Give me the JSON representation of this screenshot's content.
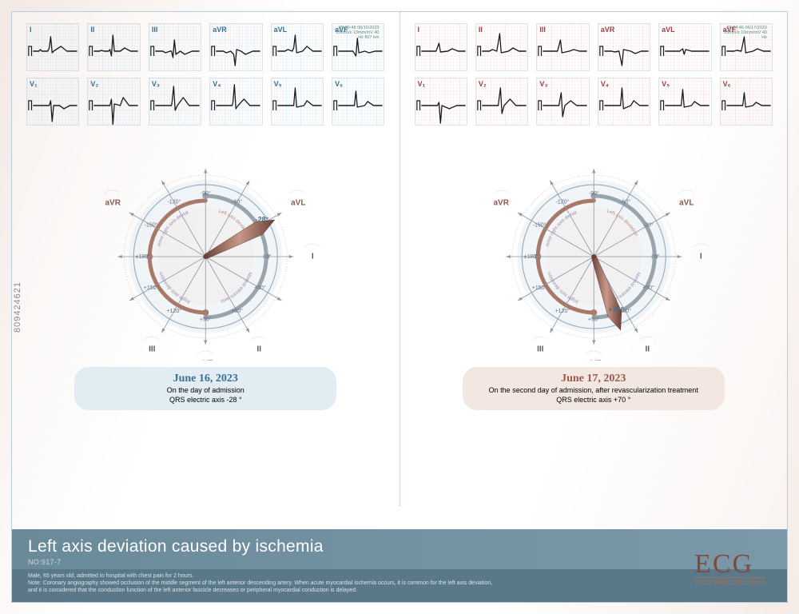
{
  "title": "Left axis deviation caused by ischemia",
  "caseNo": "NO:917-7",
  "noteHeader": "Male, 65 years old, admitted to hospital with chest pain for 2 hours.",
  "noteBody": "Note: Coronary angiography showed occlusion of the middle segment of the left anterior descending artery. When acute myocardial ischemia occurs, it is common for the left axis deviation,\nand it is considered that the conduction function of the left anterior fascicle decreases or peripheral myocardial conduction is delayed.",
  "logo": {
    "main": "ECG",
    "sub": "Visual electrocardiogram"
  },
  "watermark": "809424621",
  "leads": {
    "row1": [
      "I",
      "II",
      "III",
      "aVR",
      "aVL",
      "aVF"
    ],
    "row2": [
      "V₁",
      "V₂",
      "V₃",
      "V₄",
      "V₅",
      "V₆"
    ]
  },
  "ecg_shapes": {
    "left": {
      "I": [
        [
          0,
          0
        ],
        [
          8,
          0
        ],
        [
          10,
          -2
        ],
        [
          12,
          0
        ],
        [
          20,
          0
        ],
        [
          22,
          -4
        ],
        [
          24,
          -18
        ],
        [
          26,
          2
        ],
        [
          28,
          0
        ],
        [
          38,
          -6
        ],
        [
          46,
          0
        ],
        [
          60,
          0
        ]
      ],
      "II": [
        [
          0,
          0
        ],
        [
          8,
          0
        ],
        [
          10,
          -1
        ],
        [
          14,
          0
        ],
        [
          20,
          0
        ],
        [
          22,
          -2
        ],
        [
          24,
          6
        ],
        [
          26,
          -20
        ],
        [
          28,
          0
        ],
        [
          36,
          0
        ],
        [
          42,
          -4
        ],
        [
          50,
          0
        ],
        [
          60,
          0
        ]
      ],
      "III": [
        [
          0,
          0
        ],
        [
          10,
          0
        ],
        [
          14,
          2
        ],
        [
          20,
          0
        ],
        [
          22,
          0
        ],
        [
          24,
          8
        ],
        [
          26,
          -14
        ],
        [
          28,
          4
        ],
        [
          34,
          0
        ],
        [
          40,
          4
        ],
        [
          50,
          0
        ],
        [
          60,
          0
        ]
      ],
      "aVR": [
        [
          0,
          0
        ],
        [
          10,
          0
        ],
        [
          14,
          2
        ],
        [
          20,
          0
        ],
        [
          24,
          4
        ],
        [
          26,
          18
        ],
        [
          28,
          -2
        ],
        [
          34,
          0
        ],
        [
          40,
          4
        ],
        [
          50,
          0
        ],
        [
          60,
          0
        ]
      ],
      "aVL": [
        [
          0,
          0
        ],
        [
          10,
          0
        ],
        [
          14,
          -2
        ],
        [
          20,
          0
        ],
        [
          22,
          -4
        ],
        [
          24,
          -20
        ],
        [
          26,
          2
        ],
        [
          34,
          0
        ],
        [
          40,
          -6
        ],
        [
          48,
          0
        ],
        [
          60,
          0
        ]
      ],
      "aVF": [
        [
          0,
          0
        ],
        [
          10,
          0
        ],
        [
          20,
          0
        ],
        [
          24,
          6
        ],
        [
          26,
          -16
        ],
        [
          28,
          2
        ],
        [
          36,
          0
        ],
        [
          42,
          2
        ],
        [
          50,
          0
        ],
        [
          60,
          0
        ]
      ],
      "V1": [
        [
          0,
          0
        ],
        [
          10,
          0
        ],
        [
          22,
          0
        ],
        [
          24,
          -6
        ],
        [
          26,
          20
        ],
        [
          28,
          0
        ],
        [
          36,
          0
        ],
        [
          42,
          4
        ],
        [
          50,
          0
        ],
        [
          60,
          0
        ]
      ],
      "V2": [
        [
          0,
          0
        ],
        [
          10,
          0
        ],
        [
          22,
          0
        ],
        [
          24,
          -8
        ],
        [
          26,
          24
        ],
        [
          28,
          -2
        ],
        [
          36,
          0
        ],
        [
          40,
          -10
        ],
        [
          48,
          0
        ],
        [
          60,
          0
        ]
      ],
      "V3": [
        [
          0,
          0
        ],
        [
          10,
          0
        ],
        [
          22,
          0
        ],
        [
          23,
          -6
        ],
        [
          25,
          -24
        ],
        [
          27,
          6
        ],
        [
          30,
          0
        ],
        [
          38,
          -10
        ],
        [
          46,
          0
        ],
        [
          60,
          0
        ]
      ],
      "V4": [
        [
          0,
          0
        ],
        [
          10,
          0
        ],
        [
          22,
          0
        ],
        [
          23,
          -4
        ],
        [
          25,
          -26
        ],
        [
          27,
          4
        ],
        [
          30,
          0
        ],
        [
          38,
          -8
        ],
        [
          46,
          0
        ],
        [
          60,
          0
        ]
      ],
      "V5": [
        [
          0,
          0
        ],
        [
          10,
          0
        ],
        [
          22,
          0
        ],
        [
          24,
          -22
        ],
        [
          26,
          2
        ],
        [
          36,
          0
        ],
        [
          40,
          -6
        ],
        [
          48,
          0
        ],
        [
          60,
          0
        ]
      ],
      "V6": [
        [
          0,
          0
        ],
        [
          10,
          0
        ],
        [
          22,
          0
        ],
        [
          24,
          -18
        ],
        [
          26,
          2
        ],
        [
          36,
          0
        ],
        [
          40,
          -5
        ],
        [
          48,
          0
        ],
        [
          60,
          0
        ]
      ]
    },
    "right": {
      "I": [
        [
          0,
          0
        ],
        [
          10,
          0
        ],
        [
          20,
          0
        ],
        [
          24,
          -10
        ],
        [
          26,
          1
        ],
        [
          36,
          0
        ],
        [
          42,
          -3
        ],
        [
          50,
          0
        ],
        [
          60,
          0
        ]
      ],
      "II": [
        [
          0,
          0
        ],
        [
          10,
          0
        ],
        [
          14,
          -2
        ],
        [
          20,
          0
        ],
        [
          24,
          -22
        ],
        [
          26,
          2
        ],
        [
          36,
          0
        ],
        [
          42,
          -4
        ],
        [
          50,
          0
        ],
        [
          60,
          0
        ]
      ],
      "III": [
        [
          0,
          0
        ],
        [
          10,
          0
        ],
        [
          20,
          0
        ],
        [
          24,
          -14
        ],
        [
          26,
          2
        ],
        [
          36,
          0
        ],
        [
          42,
          -2
        ],
        [
          50,
          0
        ],
        [
          60,
          0
        ]
      ],
      "aVR": [
        [
          0,
          0
        ],
        [
          10,
          0
        ],
        [
          14,
          1
        ],
        [
          20,
          0
        ],
        [
          24,
          18
        ],
        [
          26,
          -2
        ],
        [
          36,
          0
        ],
        [
          42,
          3
        ],
        [
          50,
          0
        ],
        [
          60,
          0
        ]
      ],
      "aVL": [
        [
          0,
          0
        ],
        [
          10,
          0
        ],
        [
          20,
          0
        ],
        [
          24,
          -3
        ],
        [
          26,
          4
        ],
        [
          28,
          -2
        ],
        [
          36,
          0
        ],
        [
          50,
          0
        ],
        [
          60,
          0
        ]
      ],
      "aVF": [
        [
          0,
          0
        ],
        [
          10,
          0
        ],
        [
          14,
          -1
        ],
        [
          20,
          0
        ],
        [
          24,
          -18
        ],
        [
          26,
          2
        ],
        [
          36,
          0
        ],
        [
          42,
          -3
        ],
        [
          50,
          0
        ],
        [
          60,
          0
        ]
      ],
      "V1": [
        [
          0,
          0
        ],
        [
          10,
          0
        ],
        [
          22,
          0
        ],
        [
          24,
          -4
        ],
        [
          26,
          22
        ],
        [
          28,
          0
        ],
        [
          38,
          4
        ],
        [
          48,
          0
        ],
        [
          60,
          0
        ]
      ],
      "V2": [
        [
          0,
          0
        ],
        [
          10,
          0
        ],
        [
          22,
          0
        ],
        [
          23,
          -8
        ],
        [
          25,
          -22
        ],
        [
          27,
          10
        ],
        [
          30,
          0
        ],
        [
          38,
          -8
        ],
        [
          46,
          0
        ],
        [
          60,
          0
        ]
      ],
      "V3": [
        [
          0,
          0
        ],
        [
          10,
          0
        ],
        [
          22,
          0
        ],
        [
          23,
          -6
        ],
        [
          25,
          -16
        ],
        [
          27,
          14
        ],
        [
          30,
          0
        ],
        [
          38,
          -6
        ],
        [
          46,
          0
        ],
        [
          60,
          0
        ]
      ],
      "V4": [
        [
          0,
          0
        ],
        [
          10,
          0
        ],
        [
          22,
          0
        ],
        [
          24,
          -22
        ],
        [
          26,
          4
        ],
        [
          36,
          0
        ],
        [
          40,
          -6
        ],
        [
          48,
          0
        ],
        [
          60,
          0
        ]
      ],
      "V5": [
        [
          0,
          0
        ],
        [
          10,
          0
        ],
        [
          22,
          0
        ],
        [
          24,
          -20
        ],
        [
          26,
          2
        ],
        [
          36,
          0
        ],
        [
          40,
          -5
        ],
        [
          48,
          0
        ],
        [
          60,
          0
        ]
      ],
      "V6": [
        [
          0,
          0
        ],
        [
          10,
          0
        ],
        [
          22,
          0
        ],
        [
          24,
          -16
        ],
        [
          26,
          2
        ],
        [
          36,
          0
        ],
        [
          40,
          -4
        ],
        [
          48,
          0
        ],
        [
          60,
          0
        ]
      ]
    }
  },
  "ecg_style": {
    "grid_blue": "#cfe2ed",
    "grid_pink": "#f2d8d8",
    "trace": "#1a1a1a",
    "trace_width": 1.4,
    "cal_bar": true
  },
  "hexaxial": {
    "radius": 90,
    "ring_fill": "#e8eef4",
    "ring_fill2": "#f4ece8",
    "tick_label_size": 7,
    "lead_label_size": 10,
    "degrees": [
      -150,
      -120,
      -90,
      -60,
      -30,
      0,
      30,
      60,
      90,
      120,
      150,
      180
    ],
    "lead_labels": {
      "aVR": {
        "deg": -150,
        "color": "#8a5a4e"
      },
      "aVL": {
        "deg": -30,
        "color": "#8a5a4e"
      },
      "I": {
        "deg": 0,
        "color": "#5a5a5a"
      },
      "II": {
        "deg": 60,
        "color": "#5a5a5a"
      },
      "aVF": {
        "deg": 90,
        "color": "#8a5a4e"
      },
      "III": {
        "deg": 120,
        "color": "#5a5a5a"
      }
    },
    "sector_labels": {
      "left_axis": {
        "text": "Left axis deviation",
        "deg": -50,
        "color": "#c08878"
      },
      "extreme": {
        "text": "Extreme right axis deviation",
        "deg": -140,
        "color": "#9a8aa8"
      },
      "normal": {
        "text": "Normal electric axis",
        "deg": 45,
        "color": "#8090b0"
      },
      "right_axis": {
        "text": "Right axis deviation",
        "deg": 135,
        "color": "#9a8aa8"
      }
    },
    "arc_colors": {
      "grey": "#9aa4ac",
      "brown": "#a87868"
    },
    "pointer_color": "#8a5a4e",
    "pointer_width": 18
  },
  "panels": {
    "left": {
      "meta": "09:30:48 06/16/2023\n25mm/s 10mm/mV 40 Hz 807 km",
      "grid_color": "#cfe2ed",
      "lead_color": "blue",
      "axis_deg": -28,
      "axis_label": "-28°",
      "date": "June 16, 2023",
      "caption1": "On the day of admission",
      "caption2": "QRS electric axis -28 °"
    },
    "right": {
      "meta": "09:24:46 06/17/2023\n25mm/s 10mm/mV 40 Hz",
      "grid_color": "#f2d8d8",
      "lead_color": "red",
      "axis_deg": 70,
      "axis_label": "+70°",
      "date": "June 17, 2023",
      "caption1": "On the second day of admission, after revascularization treatment",
      "caption2": "QRS electric axis +70 °"
    }
  },
  "colors": {
    "title_bg": "#6f8e9e",
    "note_bg": "#5a7888",
    "frame": "#b8cdd8",
    "arrow_stroke": "#8a98a4"
  }
}
